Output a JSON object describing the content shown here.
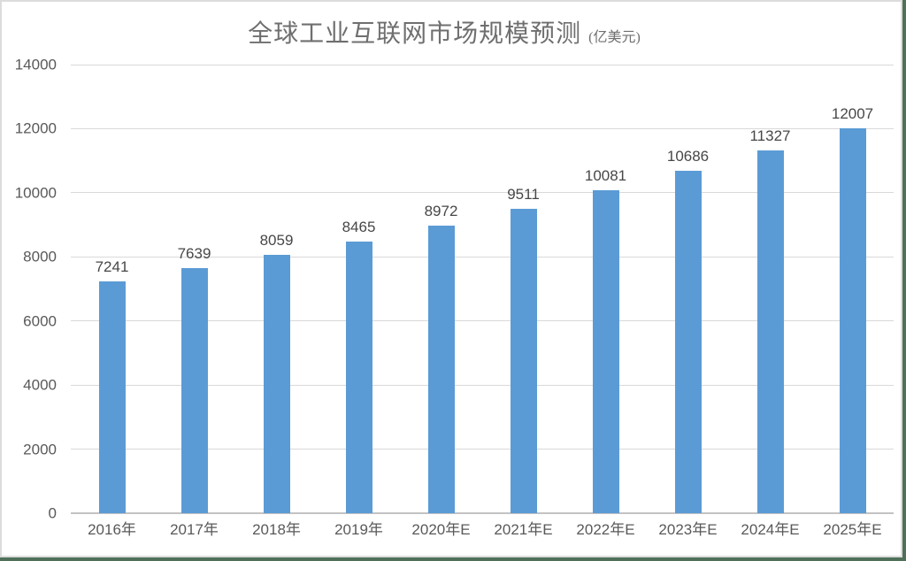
{
  "page": {
    "background": "#ffffff",
    "frame_gray": "#dcdcdc",
    "frame_green": "#4f7159"
  },
  "chart_data": {
    "type": "bar",
    "title": "全球工业互联网市场规模预测",
    "title_suffix": "(亿美元)",
    "categories": [
      "2016年",
      "2017年",
      "2018年",
      "2019年",
      "2020年E",
      "2021年E",
      "2022年E",
      "2023年E",
      "2024年E",
      "2025年E"
    ],
    "values": [
      7241,
      7639,
      8059,
      8465,
      8972,
      9511,
      10081,
      10686,
      11327,
      12007
    ],
    "xlabel": "",
    "ylabel": "",
    "ylim": [
      0,
      14000
    ],
    "yticks": [
      0,
      2000,
      4000,
      6000,
      8000,
      10000,
      12000,
      14000
    ],
    "grid": true,
    "legend": "none",
    "bar_color": "#5b9bd5",
    "gridline_color": "#d9d9d9",
    "axis_line_color": "#c3c3c3",
    "value_label_color": "#474747",
    "tick_label_color": "#595959",
    "title_color": "#6f6f6f"
  }
}
